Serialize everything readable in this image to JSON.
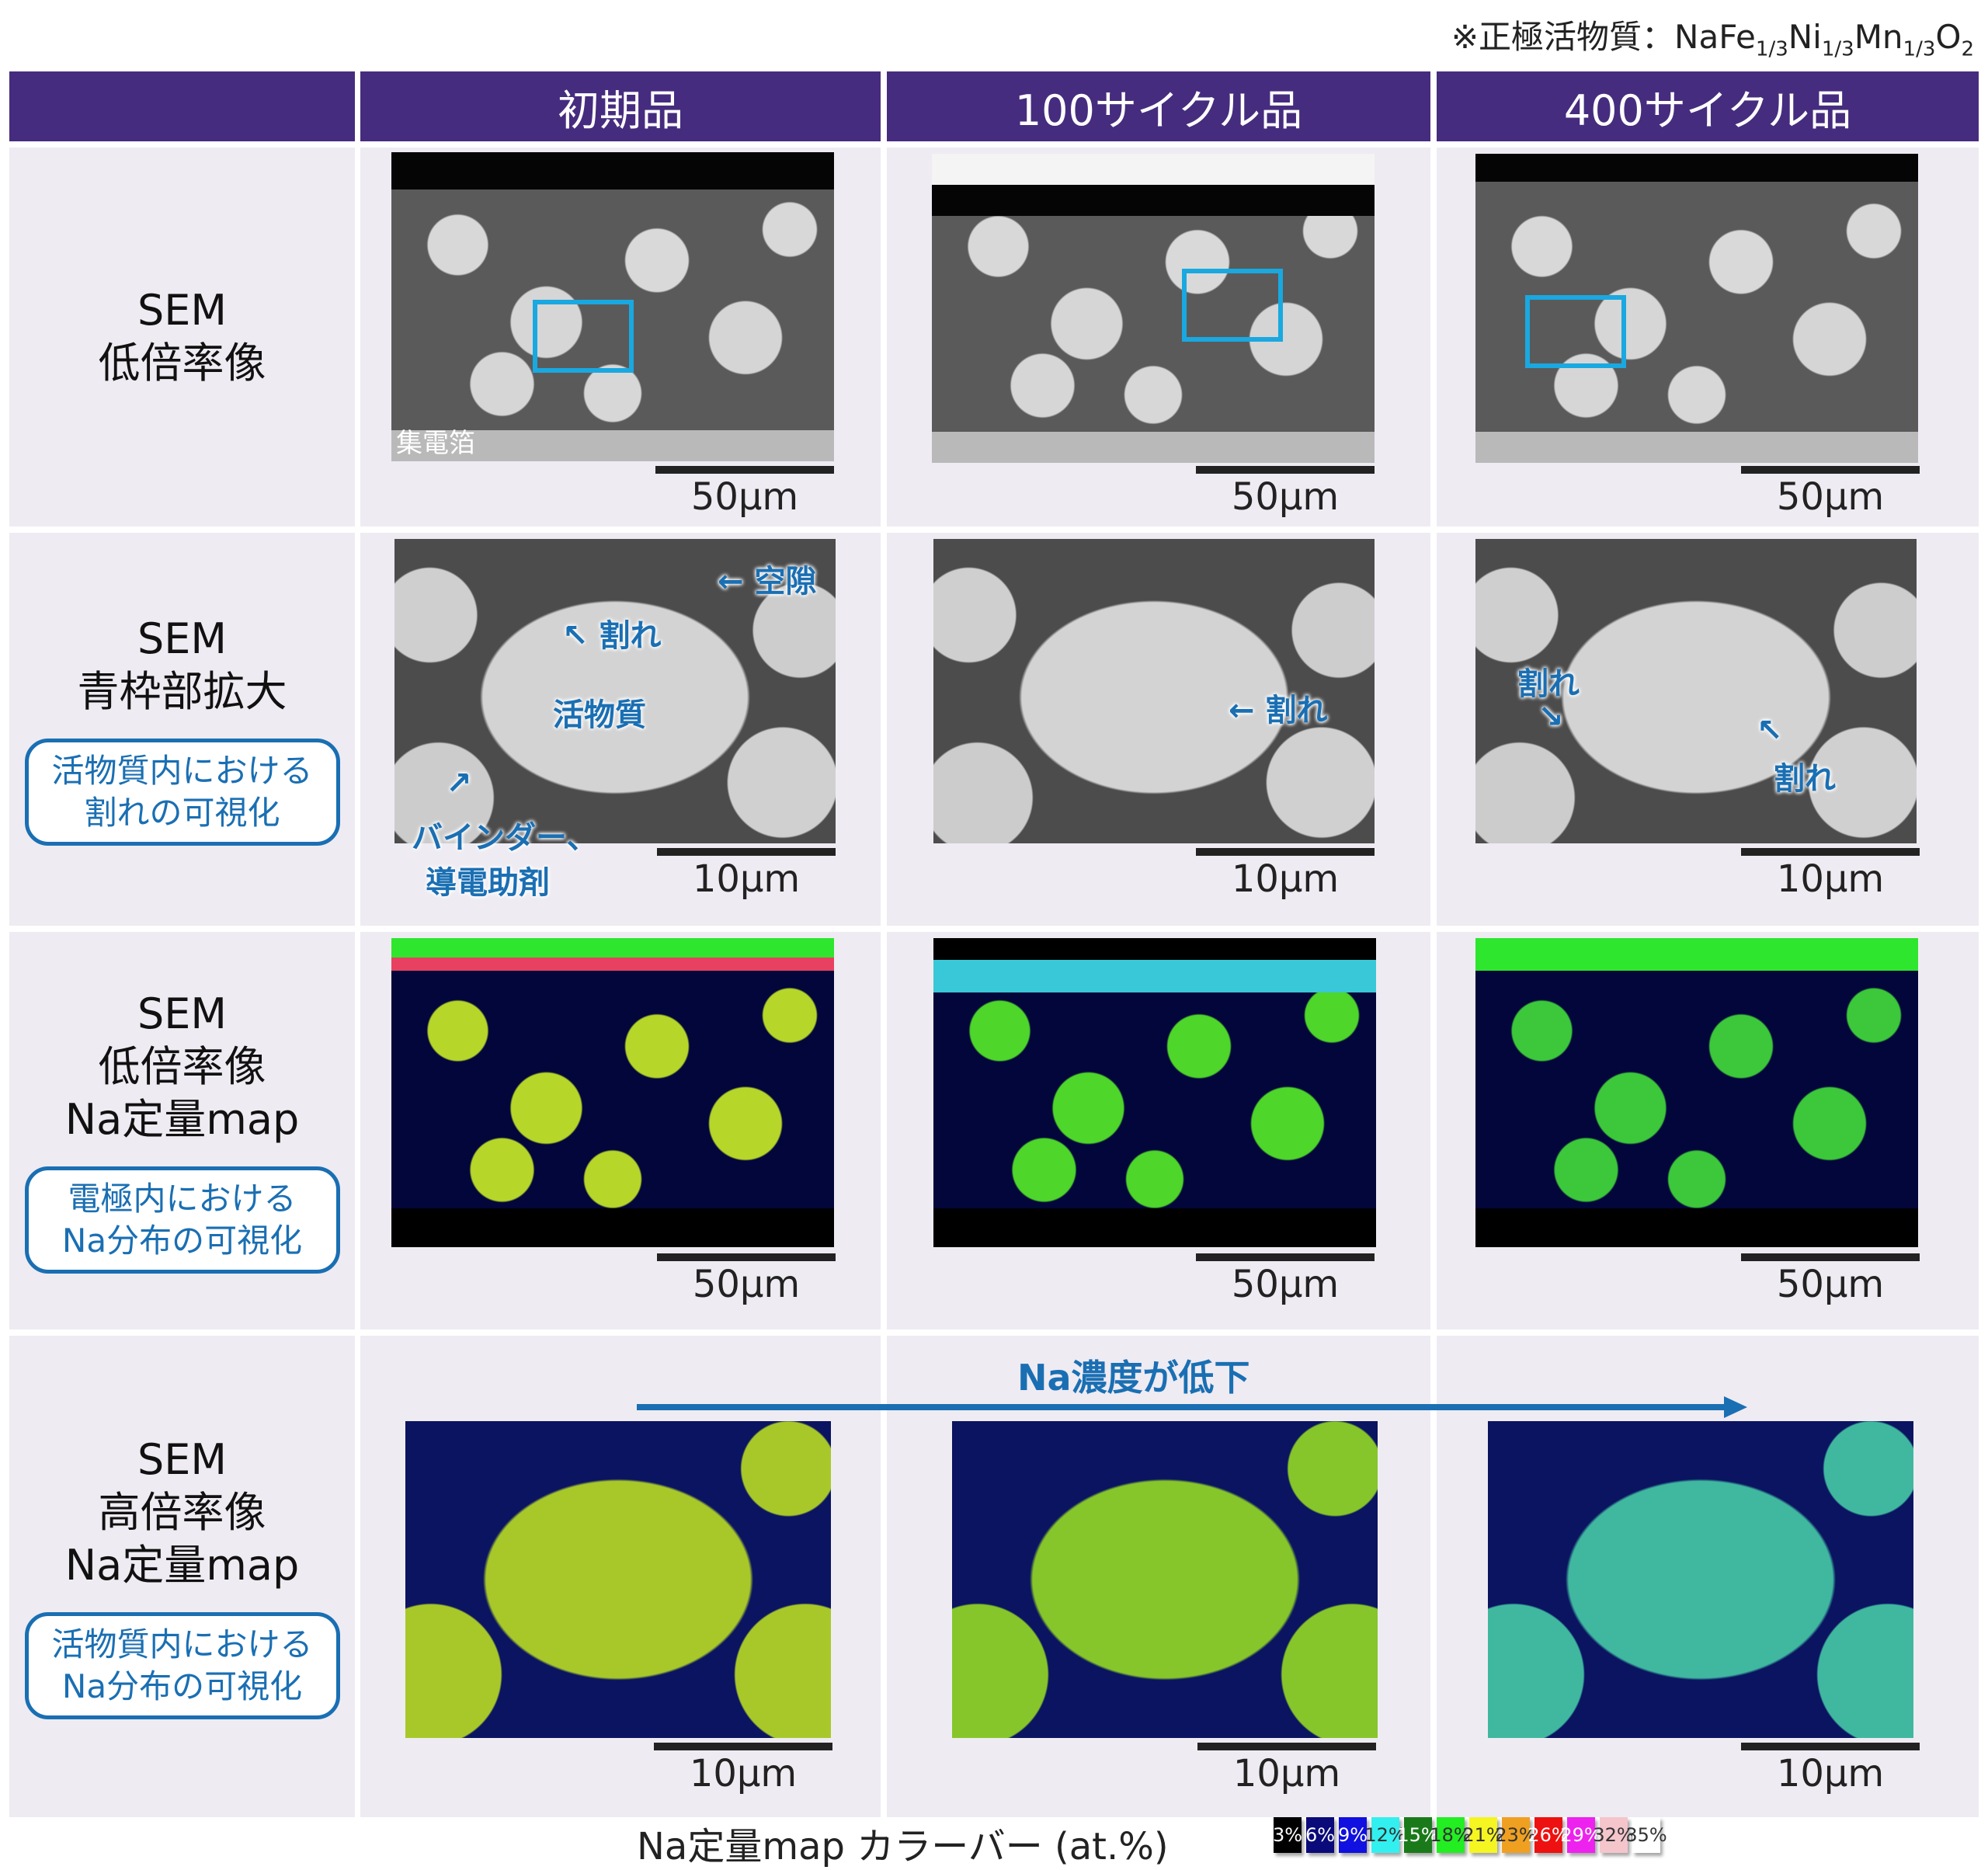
{
  "note": {
    "prefix": "※正極活物質：NaFe",
    "s1": "1/3",
    "ni": "Ni",
    "s2": "1/3",
    "mn": "Mn",
    "s3": "1/3",
    "o": "O",
    "s4": "2"
  },
  "columns": [
    "初期品",
    "100サイクル品",
    "400サイクル品"
  ],
  "rows": [
    {
      "label_lines": [
        "SEM",
        "低倍率像"
      ],
      "badge_lines": [],
      "scale": "50μm"
    },
    {
      "label_lines": [
        "SEM",
        "青枠部拡大"
      ],
      "badge_lines": [
        "活物質内における",
        "割れの可視化"
      ],
      "scale": "10μm"
    },
    {
      "label_lines": [
        "SEM",
        "低倍率像",
        "Na定量map"
      ],
      "badge_lines": [
        "電極内における",
        "Na分布の可視化"
      ],
      "scale": "50μm"
    },
    {
      "label_lines": [
        "SEM",
        "高倍率像",
        "Na定量map"
      ],
      "badge_lines": [
        "活物質内における",
        "Na分布の可視化"
      ],
      "scale": "10μm"
    }
  ],
  "annotations": {
    "foil": "集電箔",
    "void": "空隙",
    "crack": "割れ",
    "active": "活物質",
    "binder1": "バインダー、",
    "binder2": "導電助剤"
  },
  "trend_label": "Na濃度が低下",
  "colorbar": {
    "title": "Na定量map カラーバー (at.%)",
    "items": [
      {
        "label": "3%",
        "color": "#000000",
        "text": "#ffffff"
      },
      {
        "label": "6%",
        "color": "#0a0a7a",
        "text": "#ffffff"
      },
      {
        "label": "9%",
        "color": "#1010e0",
        "text": "#ffffff"
      },
      {
        "label": "12%",
        "color": "#33f0f0",
        "text": "#333333"
      },
      {
        "label": "15%",
        "color": "#1a7a1a",
        "text": "#ffffff"
      },
      {
        "label": "18%",
        "color": "#22ee22",
        "text": "#333333"
      },
      {
        "label": "21%",
        "color": "#f5f522",
        "text": "#333333"
      },
      {
        "label": "23%",
        "color": "#f0a020",
        "text": "#333333"
      },
      {
        "label": "26%",
        "color": "#ee1111",
        "text": "#ffffff"
      },
      {
        "label": "29%",
        "color": "#ee22ee",
        "text": "#ffffff"
      },
      {
        "label": "32%",
        "color": "#f5c5cc",
        "text": "#333333"
      },
      {
        "label": "35%",
        "color": "#ffffff",
        "text": "#333333"
      }
    ]
  }
}
